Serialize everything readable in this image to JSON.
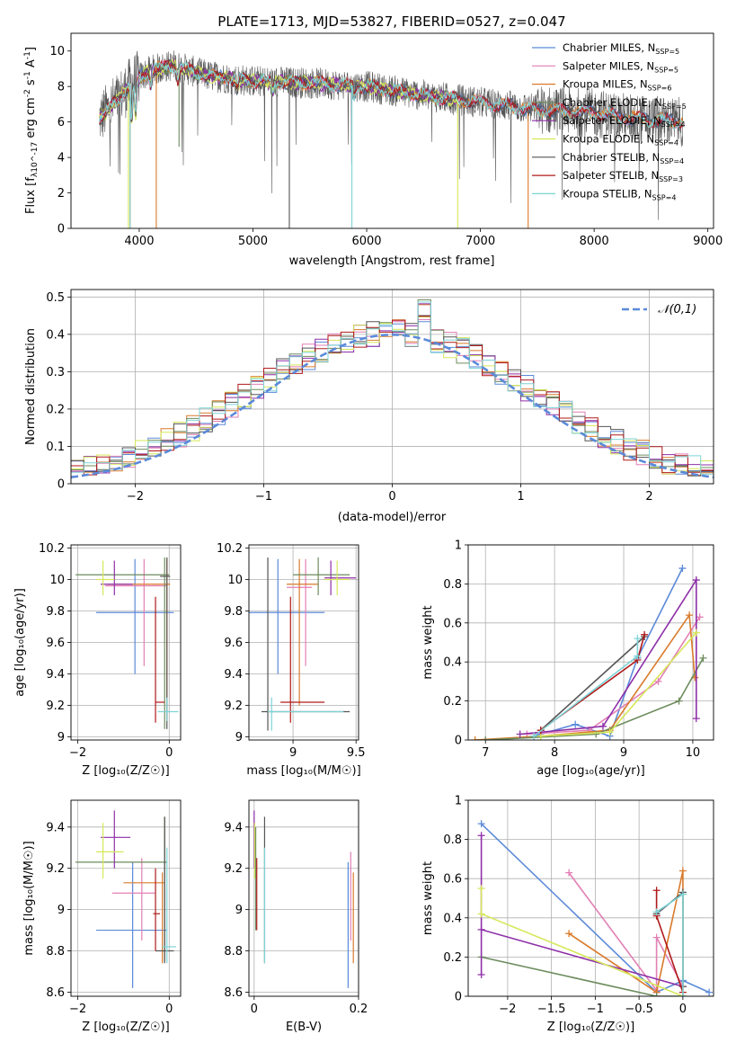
{
  "title": "PLATE=1713, MJD=53827, FIBERID=0527, z=0.047",
  "colors": {
    "Chabrier MILES": "#5b8ad9",
    "Salpeter MILES": "#e37fb5",
    "Kroupa MILES": "#d97a2b",
    "Chabrier ELODIE": "#6d8c5d",
    "Salpeter ELODIE": "#8e2fa8",
    "Kroupa ELODIE": "#d6e85a",
    "Chabrier STELIB": "#555555",
    "Salpeter STELIB": "#b01a1a",
    "Kroupa STELIB": "#7ed3d6",
    "gauss": "#5b8ad9"
  },
  "chart_data": [
    {
      "id": "spectrum",
      "type": "line",
      "xlabel": "wavelength [Angstrom, rest frame]",
      "ylabel": "Flux [f_λ10^-17 erg cm^-2 s^-1 A^-1]",
      "xlim": [
        3400,
        9050
      ],
      "ylim": [
        0,
        11
      ],
      "xticks": [
        4000,
        5000,
        6000,
        7000,
        8000,
        9000
      ],
      "yticks": [
        0,
        2,
        4,
        6,
        8,
        10
      ],
      "legend": [
        "Chabrier MILES, N_SSP=5",
        "Salpeter MILES, N_SSP=5",
        "Kroupa MILES, N_SSP=6",
        "Chabrier ELODIE, N_SSP=5",
        "Salpeter ELODIE, N_SSP=4",
        "Kroupa ELODIE, N_SSP=4",
        "Chabrier STELIB, N_SSP=4",
        "Salpeter STELIB, N_SSP=3",
        "Kroupa STELIB, N_SSP=4"
      ],
      "legend_loc": "right",
      "data_range": [
        3650,
        8780
      ],
      "continuum": [
        [
          3650,
          6.2
        ],
        [
          3800,
          7.2
        ],
        [
          3950,
          8.3
        ],
        [
          4100,
          8.9
        ],
        [
          4300,
          9.2
        ],
        [
          4600,
          8.6
        ],
        [
          5000,
          8.3
        ],
        [
          5500,
          8.2
        ],
        [
          6000,
          8.0
        ],
        [
          6500,
          7.5
        ],
        [
          7000,
          7.1
        ],
        [
          7500,
          6.7
        ],
        [
          8000,
          6.5
        ],
        [
          8500,
          6.1
        ],
        [
          8780,
          6.0
        ]
      ]
    },
    {
      "id": "residuals",
      "type": "step",
      "xlabel": "(data-model)/error",
      "ylabel": "Normed distribution",
      "xlim": [
        -2.5,
        2.5
      ],
      "ylim": [
        0,
        0.52
      ],
      "xticks": [
        -2,
        -1,
        0,
        1,
        2
      ],
      "yticks": [
        0.0,
        0.1,
        0.2,
        0.3,
        0.4,
        0.5
      ],
      "legend": [
        "𝒩(0,1)"
      ],
      "legend_loc": "upper right"
    },
    {
      "id": "age_vs_Z",
      "type": "errorbar",
      "xlabel": "Z [log10(Z/Z☉)]",
      "ylabel": "age [log10(age/yr)]",
      "xlim": [
        -2.15,
        0.25
      ],
      "ylim": [
        8.98,
        10.22
      ],
      "xticks": [
        -2,
        0
      ],
      "yticks": [
        9.0,
        9.2,
        9.4,
        9.6,
        9.8,
        10.0,
        10.2
      ],
      "points": [
        {
          "s": "Chabrier MILES",
          "x": -0.75,
          "y": 9.79,
          "xl": -1.6,
          "xh": 0.1,
          "yl": 9.4,
          "yh": 10.13
        },
        {
          "s": "Salpeter MILES",
          "x": -0.55,
          "y": 9.96,
          "xl": -1.4,
          "xh": -0.05,
          "yl": 9.45,
          "yh": 10.13
        },
        {
          "s": "Kroupa MILES",
          "x": -0.05,
          "y": 9.97,
          "xl": -1.35,
          "xh": 0.02,
          "yl": 9.1,
          "yh": 10.13
        },
        {
          "s": "Chabrier ELODIE",
          "x": -0.1,
          "y": 10.03,
          "xl": -2.05,
          "xh": 0.0,
          "yl": 9.05,
          "yh": 10.14
        },
        {
          "s": "Salpeter ELODIE",
          "x": -1.2,
          "y": 9.97,
          "xl": -1.5,
          "xh": -0.8,
          "yl": 9.9,
          "yh": 10.12
        },
        {
          "s": "Kroupa ELODIE",
          "x": -1.45,
          "y": 10.0,
          "xl": -1.6,
          "xh": -1.2,
          "yl": 9.9,
          "yh": 10.12
        },
        {
          "s": "Chabrier STELIB",
          "x": -0.05,
          "y": 10.02,
          "xl": -0.2,
          "xh": 0.02,
          "yl": 9.05,
          "yh": 10.14
        },
        {
          "s": "Salpeter STELIB",
          "x": -0.3,
          "y": 9.22,
          "xl": -0.3,
          "xh": -0.1,
          "yl": 9.09,
          "yh": 9.89
        },
        {
          "s": "Kroupa STELIB",
          "x": -0.05,
          "y": 9.16,
          "xl": -0.25,
          "xh": 0.2,
          "yl": 9.1,
          "yh": 9.25
        }
      ]
    },
    {
      "id": "age_vs_mass",
      "type": "errorbar",
      "xlabel": "mass [log10(M/M☉)]",
      "ylabel": "",
      "xlim": [
        8.65,
        9.52
      ],
      "ylim": [
        8.98,
        10.22
      ],
      "xticks": [
        9.0,
        9.5
      ],
      "yticks": [
        9.0,
        9.2,
        9.4,
        9.6,
        9.8,
        10.0,
        10.2
      ],
      "points": [
        {
          "s": "Chabrier MILES",
          "x": 8.88,
          "y": 9.79,
          "xl": 8.62,
          "xh": 9.25,
          "yl": 9.4,
          "yh": 10.13
        },
        {
          "s": "Salpeter MILES",
          "x": 9.1,
          "y": 9.95,
          "xl": 8.95,
          "xh": 9.15,
          "yl": 9.45,
          "yh": 10.13
        },
        {
          "s": "Kroupa MILES",
          "x": 9.05,
          "y": 9.97,
          "xl": 8.95,
          "xh": 9.2,
          "yl": 9.2,
          "yh": 10.13
        },
        {
          "s": "Chabrier ELODIE",
          "x": 9.2,
          "y": 10.03,
          "xl": 9.0,
          "xh": 9.45,
          "yl": 9.9,
          "yh": 10.14
        },
        {
          "s": "Salpeter ELODIE",
          "x": 9.3,
          "y": 10.01,
          "xl": 9.25,
          "xh": 9.5,
          "yl": 9.9,
          "yh": 10.12
        },
        {
          "s": "Kroupa ELODIE",
          "x": 9.35,
          "y": 10.0,
          "xl": 9.25,
          "xh": 9.45,
          "yl": 9.9,
          "yh": 10.12
        },
        {
          "s": "Chabrier STELIB",
          "x": 8.8,
          "y": 9.16,
          "xl": 8.75,
          "xh": 9.45,
          "yl": 9.04,
          "yh": 10.14
        },
        {
          "s": "Salpeter STELIB",
          "x": 8.98,
          "y": 9.22,
          "xl": 8.9,
          "xh": 9.25,
          "yl": 9.09,
          "yh": 9.89
        },
        {
          "s": "Kroupa STELIB",
          "x": 8.83,
          "y": 9.16,
          "xl": 8.8,
          "xh": 9.4,
          "yl": 9.04,
          "yh": 9.25
        }
      ]
    },
    {
      "id": "mass_weight_vs_age",
      "type": "line",
      "xlabel": "age [log10(age/yr)]",
      "ylabel": "mass weight",
      "xlim": [
        6.75,
        10.3
      ],
      "ylim": [
        0,
        1.0
      ],
      "xticks": [
        7,
        8,
        9,
        10
      ],
      "yticks": [
        0.0,
        0.2,
        0.4,
        0.6,
        0.8,
        1.0
      ],
      "series": [
        {
          "s": "Chabrier MILES",
          "points": [
            [
              7.7,
              0.02
            ],
            [
              8.3,
              0.08
            ],
            [
              8.8,
              0.02
            ],
            [
              9.2,
              0.42
            ],
            [
              9.85,
              0.88
            ]
          ]
        },
        {
          "s": "Salpeter MILES",
          "points": [
            [
              7.6,
              0.03
            ],
            [
              8.5,
              0.05
            ],
            [
              9.5,
              0.3
            ],
            [
              10.1,
              0.63
            ]
          ]
        },
        {
          "s": "Kroupa MILES",
          "points": [
            [
              6.85,
              0.0
            ],
            [
              7.8,
              0.02
            ],
            [
              8.8,
              0.05
            ],
            [
              9.95,
              0.64
            ],
            [
              10.03,
              0.32
            ]
          ]
        },
        {
          "s": "Chabrier ELODIE",
          "points": [
            [
              7.0,
              0.0
            ],
            [
              8.6,
              0.03
            ],
            [
              9.8,
              0.2
            ],
            [
              10.15,
              0.42
            ]
          ]
        },
        {
          "s": "Salpeter ELODIE",
          "points": [
            [
              7.5,
              0.03
            ],
            [
              8.7,
              0.07
            ],
            [
              10.05,
              0.82
            ],
            [
              10.05,
              0.11
            ]
          ]
        },
        {
          "s": "Kroupa ELODIE",
          "points": [
            [
              7.8,
              0.02
            ],
            [
              8.8,
              0.04
            ],
            [
              10.05,
              0.55
            ]
          ]
        },
        {
          "s": "Chabrier STELIB",
          "points": [
            [
              7.8,
              0.05
            ],
            [
              9.3,
              0.53
            ]
          ]
        },
        {
          "s": "Salpeter STELIB",
          "points": [
            [
              7.8,
              0.05
            ],
            [
              9.2,
              0.41
            ],
            [
              9.3,
              0.54
            ]
          ]
        },
        {
          "s": "Kroupa STELIB",
          "points": [
            [
              7.7,
              0.02
            ],
            [
              9.2,
              0.43
            ],
            [
              9.2,
              0.52
            ]
          ]
        }
      ]
    },
    {
      "id": "mass_vs_Z",
      "type": "errorbar",
      "xlabel": "Z [log10(Z/Z☉)]",
      "ylabel": "mass [log10(M/M☉)]",
      "xlim": [
        -2.15,
        0.25
      ],
      "ylim": [
        8.58,
        9.53
      ],
      "xticks": [
        -2,
        0
      ],
      "yticks": [
        8.6,
        8.8,
        9.0,
        9.2,
        9.4
      ],
      "points": [
        {
          "s": "Chabrier MILES",
          "x": -0.8,
          "y": 8.9,
          "xl": -1.6,
          "xh": -0.05,
          "yl": 8.62,
          "yh": 9.23
        },
        {
          "s": "Salpeter MILES",
          "x": -0.6,
          "y": 9.08,
          "xl": -1.25,
          "xh": -0.3,
          "yl": 8.85,
          "yh": 9.25
        },
        {
          "s": "Kroupa MILES",
          "x": -0.15,
          "y": 9.13,
          "xl": -1.0,
          "xh": -0.1,
          "yl": 8.74,
          "yh": 9.18
        },
        {
          "s": "Chabrier ELODIE",
          "x": -0.1,
          "y": 9.23,
          "xl": -2.05,
          "xh": -0.05,
          "yl": 8.75,
          "yh": 9.45
        },
        {
          "s": "Salpeter ELODIE",
          "x": -1.2,
          "y": 9.35,
          "xl": -1.5,
          "xh": -0.85,
          "yl": 9.2,
          "yh": 9.48
        },
        {
          "s": "Kroupa ELODIE",
          "x": -1.45,
          "y": 9.28,
          "xl": -1.6,
          "xh": -1.0,
          "yl": 9.15,
          "yh": 9.42
        },
        {
          "s": "Chabrier STELIB",
          "x": -0.1,
          "y": 8.8,
          "xl": -0.3,
          "xh": 0.1,
          "yl": 8.74,
          "yh": 9.45
        },
        {
          "s": "Salpeter STELIB",
          "x": -0.3,
          "y": 8.98,
          "xl": -0.35,
          "xh": -0.2,
          "yl": 8.8,
          "yh": 9.2
        },
        {
          "s": "Kroupa STELIB",
          "x": -0.05,
          "y": 8.82,
          "xl": -0.15,
          "xh": 0.15,
          "yl": 8.74,
          "yh": 9.3
        }
      ]
    },
    {
      "id": "mass_vs_ebv",
      "type": "errorbar",
      "xlabel": "E(B-V)",
      "ylabel": "",
      "xlim": [
        -0.01,
        0.2
      ],
      "ylim": [
        8.58,
        9.53
      ],
      "xticks": [
        0.0,
        0.2
      ],
      "yticks": [
        8.6,
        8.8,
        9.0,
        9.2,
        9.4
      ],
      "points": [
        {
          "s": "Chabrier MILES",
          "x": 0.18,
          "y": 8.9,
          "yl": 8.62,
          "yh": 9.23
        },
        {
          "s": "Salpeter MILES",
          "x": 0.185,
          "y": 9.08,
          "yl": 8.85,
          "yh": 9.28
        },
        {
          "s": "Kroupa MILES",
          "x": 0.19,
          "y": 9.0,
          "yl": 8.74,
          "yh": 9.18
        },
        {
          "s": "Chabrier ELODIE",
          "x": 0.003,
          "y": 9.23,
          "yl": 8.9,
          "yh": 9.4
        },
        {
          "s": "Salpeter ELODIE",
          "x": 0.0,
          "y": 9.35,
          "yl": 9.2,
          "yh": 9.48
        },
        {
          "s": "Kroupa ELODIE",
          "x": 0.001,
          "y": 9.28,
          "yl": 9.15,
          "yh": 9.42
        },
        {
          "s": "Chabrier STELIB",
          "x": 0.02,
          "y": 8.8,
          "yl": 8.74,
          "yh": 9.45
        },
        {
          "s": "Salpeter STELIB",
          "x": 0.005,
          "y": 8.98,
          "yl": 8.9,
          "yh": 9.25
        },
        {
          "s": "Kroupa STELIB",
          "x": 0.02,
          "y": 8.82,
          "yl": 8.74,
          "yh": 9.3
        }
      ]
    },
    {
      "id": "mass_weight_vs_Z",
      "type": "line",
      "xlabel": "Z [log10(Z/Z☉)]",
      "ylabel": "mass weight",
      "xlim": [
        -2.45,
        0.35
      ],
      "ylim": [
        0,
        1.0
      ],
      "xticks": [
        -2.0,
        -1.5,
        -1.0,
        -0.5,
        0.0
      ],
      "yticks": [
        0.0,
        0.2,
        0.4,
        0.6,
        0.8,
        1.0
      ],
      "series": [
        {
          "s": "Chabrier MILES",
          "points": [
            [
              -2.3,
              0.88
            ],
            [
              -0.3,
              0.02
            ],
            [
              0.0,
              0.08
            ],
            [
              0.3,
              0.02
            ]
          ]
        },
        {
          "s": "Salpeter MILES",
          "points": [
            [
              -1.3,
              0.63
            ],
            [
              -0.3,
              0.03
            ],
            [
              -0.3,
              0.3
            ],
            [
              0.0,
              0.05
            ]
          ]
        },
        {
          "s": "Kroupa MILES",
          "points": [
            [
              -1.3,
              0.32
            ],
            [
              -0.3,
              0.02
            ],
            [
              0.0,
              0.64
            ],
            [
              0.0,
              0.0
            ]
          ]
        },
        {
          "s": "Chabrier ELODIE",
          "points": [
            [
              -2.3,
              0.2
            ],
            [
              -0.3,
              0.0
            ],
            [
              0.0,
              0.0
            ]
          ]
        },
        {
          "s": "Salpeter ELODIE",
          "points": [
            [
              -2.3,
              0.82
            ],
            [
              -2.3,
              0.11
            ],
            [
              -2.3,
              0.34
            ],
            [
              0.0,
              0.05
            ]
          ]
        },
        {
          "s": "Kroupa ELODIE",
          "points": [
            [
              -2.3,
              0.55
            ],
            [
              -2.3,
              0.42
            ],
            [
              0.0,
              0.0
            ]
          ]
        },
        {
          "s": "Chabrier STELIB",
          "points": [
            [
              -0.3,
              0.42
            ],
            [
              0.0,
              0.53
            ],
            [
              0.0,
              0.05
            ]
          ]
        },
        {
          "s": "Salpeter STELIB",
          "points": [
            [
              -0.3,
              0.54
            ],
            [
              -0.3,
              0.41
            ],
            [
              0.0,
              0.02
            ]
          ]
        },
        {
          "s": "Kroupa STELIB",
          "points": [
            [
              -0.3,
              0.43
            ],
            [
              0.0,
              0.52
            ],
            [
              0.0,
              0.0
            ]
          ]
        }
      ]
    }
  ]
}
